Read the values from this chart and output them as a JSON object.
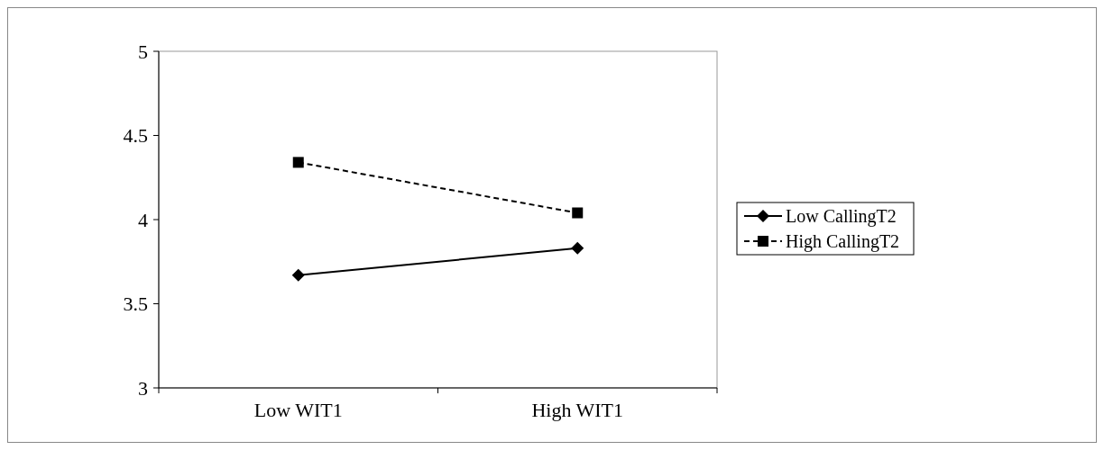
{
  "chart_data": {
    "type": "line",
    "categories": [
      "Low WIT1",
      "High WIT1"
    ],
    "series": [
      {
        "name": "Low CallingT2",
        "color": "#000000",
        "values": [
          3.67,
          3.83
        ],
        "marker": "diamond",
        "line_style": "solid"
      },
      {
        "name": "High CallingT2",
        "color": "#000000",
        "values": [
          4.34,
          4.04
        ],
        "marker": "square",
        "line_style": "dashed"
      }
    ],
    "ylim": [
      3,
      5
    ],
    "yticks": [
      3,
      3.5,
      4,
      4.5,
      5
    ],
    "grid": false,
    "legend": "right"
  }
}
